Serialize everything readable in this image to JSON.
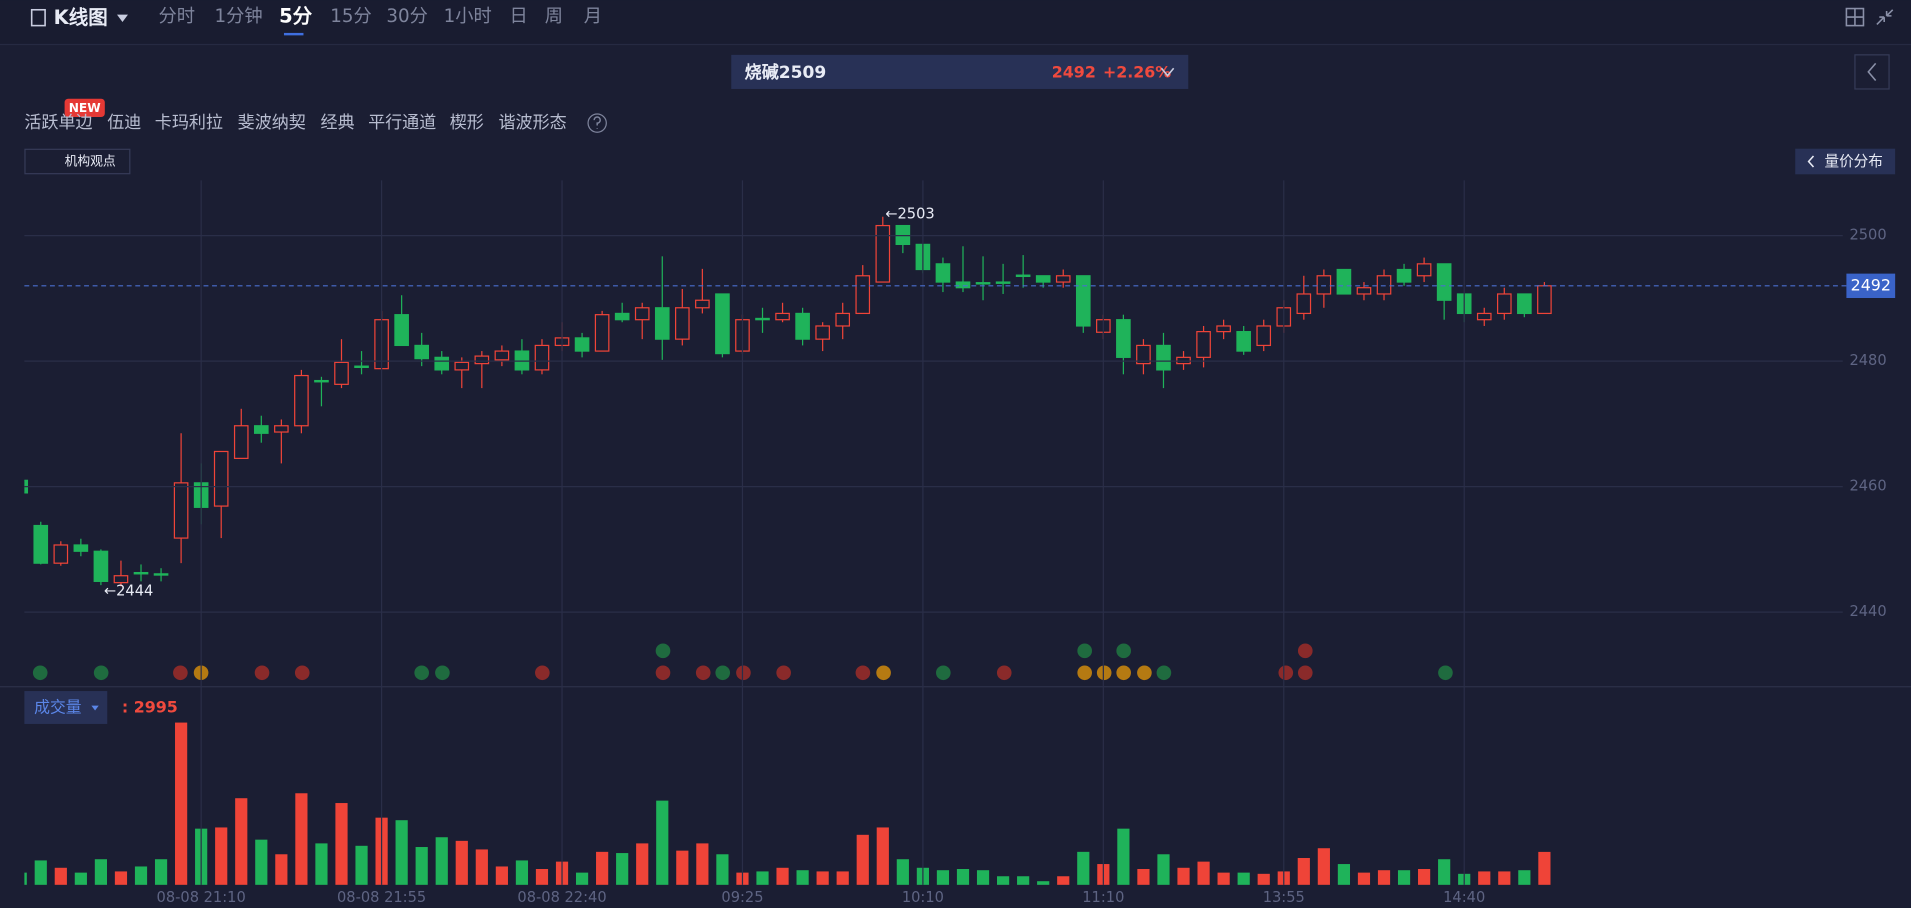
{
  "header": {
    "title": "K线图",
    "tabs": [
      "分时",
      "1分钟",
      "5分",
      "15分",
      "30分",
      "1小时",
      "日",
      "周",
      "月"
    ],
    "active_tab": "5分",
    "symbol": "烧碱2509",
    "price": "2492",
    "change": "+2.26%",
    "tools": [
      "活跃单边",
      "伍迪",
      "卡玛利拉",
      "斐波纳契",
      "经典",
      "平行通道",
      "楔形",
      "谐波形态"
    ],
    "badge": "NEW",
    "institution_view": "机构观点",
    "volume_profile": "量价分布"
  },
  "chart_data": [
    {
      "type": "candlestick",
      "up_color": "#ef4438",
      "down_color": "#1fb35a",
      "categories": [
        null,
        null,
        null,
        null,
        null,
        null,
        null,
        null,
        null,
        "08-08 21:10",
        null,
        null,
        null,
        null,
        null,
        null,
        null,
        null,
        "08-08 21:55",
        null,
        null,
        null,
        null,
        null,
        null,
        null,
        null,
        "08-08 22:40",
        null,
        null,
        null,
        null,
        null,
        null,
        null,
        null,
        "09:25",
        null,
        null,
        null,
        null,
        null,
        null,
        null,
        null,
        "10:10",
        null,
        null,
        null,
        null,
        null,
        null,
        null,
        null,
        "11:10",
        null,
        null,
        null,
        null,
        null,
        null,
        null,
        null,
        "13:55",
        null,
        null,
        null,
        null,
        null,
        null,
        null,
        null,
        "14:40",
        null,
        null,
        null,
        null
      ],
      "open": [
        2461,
        2453.8,
        2447.8,
        2450.7,
        2449.7,
        2444.7,
        2446.3,
        2446.1,
        2451.8,
        2460.6,
        2456.9,
        2464.5,
        2469.7,
        2468.7,
        2469.7,
        2476.9,
        2476.3,
        2479.2,
        2478.8,
        2487.4,
        2482.5,
        2480.6,
        2478.6,
        2479.6,
        2480.2,
        2481.6,
        2478.6,
        2482.5,
        2483.7,
        2481.6,
        2487.6,
        2486.6,
        2488.5,
        2483.5,
        2488.5,
        2490.7,
        2481.6,
        2486.8,
        2486.6,
        2487.6,
        2483.5,
        2485.6,
        2487.6,
        2492.6,
        2501.6,
        2498.6,
        2495.5,
        2492.6,
        2492.5,
        2492.6,
        2493.7,
        2493.6,
        2492.6,
        2493.6,
        2484.6,
        2486.6,
        2479.6,
        2482.5,
        2479.6,
        2480.6,
        2484.7,
        2484.7,
        2482.5,
        2485.6,
        2487.6,
        2490.7,
        2494.6,
        2490.7,
        2490.7,
        2494.6,
        2493.6,
        2495.5,
        2490.7,
        2486.6,
        2487.6,
        2490.7,
        2487.6
      ],
      "high": [
        2461,
        2454.4,
        2451.3,
        2451.7,
        2450,
        2448.2,
        2447.6,
        2447.0,
        2468.5,
        2463.7,
        2465.6,
        2472.4,
        2471.3,
        2470.7,
        2478.6,
        2477.5,
        2483.5,
        2481.6,
        2488,
        2490.5,
        2484.5,
        2481.6,
        2480.6,
        2481.6,
        2482.5,
        2483.5,
        2483.5,
        2486.2,
        2484.5,
        2488,
        2489.3,
        2489.3,
        2496.7,
        2491.5,
        2494.7,
        2490.7,
        2487.4,
        2488.5,
        2489.3,
        2488.5,
        2486.2,
        2489.3,
        2495.3,
        2503,
        2501.6,
        2498.6,
        2496.5,
        2498.3,
        2496.7,
        2495.5,
        2496.9,
        2493.6,
        2494.6,
        2493.6,
        2487.4,
        2487.4,
        2483.5,
        2484.5,
        2481.6,
        2485.6,
        2486.6,
        2485.6,
        2486.6,
        2489.7,
        2493.6,
        2494.6,
        2494.6,
        2492.6,
        2494.6,
        2495.5,
        2496.5,
        2495.5,
        2490.7,
        2488.5,
        2491.7,
        2490.7,
        2492.6
      ],
      "low": [
        2459,
        2447.6,
        2447.4,
        2448.9,
        2444.3,
        2444.1,
        2444.9,
        2444.9,
        2447.8,
        2454,
        2451.8,
        2464.5,
        2467,
        2463.7,
        2468.5,
        2472.8,
        2475.7,
        2477.9,
        2478.8,
        2482.5,
        2479.2,
        2477.9,
        2475.7,
        2475.7,
        2479.2,
        2477.9,
        2477.9,
        2481.6,
        2480.6,
        2481.6,
        2486.2,
        2483.5,
        2480.2,
        2482.5,
        2487.6,
        2480.6,
        2481.2,
        2484.5,
        2486.2,
        2482.5,
        2481.6,
        2483.5,
        2487.6,
        2492.6,
        2497.2,
        2494,
        2491,
        2491,
        2489.7,
        2490.7,
        2491.7,
        2491.7,
        2491.7,
        2484.5,
        2483.5,
        2477.9,
        2477.9,
        2475.7,
        2478.6,
        2479,
        2483.5,
        2481,
        2481.6,
        2484.5,
        2486.6,
        2488.5,
        2490.7,
        2489.7,
        2489.7,
        2492,
        2492.6,
        2486.6,
        2486.2,
        2485.6,
        2486.6,
        2487,
        2487.6
      ],
      "close": [
        2459,
        2447.8,
        2450.7,
        2449.7,
        2444.9,
        2445.8,
        2446.1,
        2446.0,
        2460.6,
        2456.7,
        2465.6,
        2469.7,
        2468.5,
        2469.7,
        2477.7,
        2476.7,
        2479.8,
        2479.0,
        2486.6,
        2482.5,
        2480.4,
        2478.6,
        2479.8,
        2480.8,
        2481.6,
        2478.6,
        2482.5,
        2483.7,
        2481.6,
        2487.4,
        2486.6,
        2488.5,
        2483.5,
        2488.5,
        2489.7,
        2481.2,
        2486.6,
        2486.6,
        2487.6,
        2483.5,
        2485.6,
        2487.6,
        2493.6,
        2501.6,
        2498.6,
        2494.6,
        2492.6,
        2491.7,
        2492.3,
        2492.4,
        2493.5,
        2492.6,
        2493.6,
        2485.6,
        2486.6,
        2480.6,
        2482.5,
        2478.6,
        2480.6,
        2484.7,
        2485.6,
        2481.6,
        2485.6,
        2488.5,
        2490.7,
        2493.6,
        2490.7,
        2491.7,
        2493.6,
        2492.6,
        2495.5,
        2489.7,
        2487.6,
        2487.6,
        2490.7,
        2487.6,
        2492
      ],
      "ylim": [
        2428.2,
        2508.8
      ],
      "yticks": [
        2440,
        2460,
        2480,
        2500
      ],
      "grid": true,
      "last_price": 2492,
      "high_annotation": "←2503",
      "low_annotation": "←2444"
    },
    {
      "type": "bar",
      "title": "成交量",
      "readout": ": 2995",
      "values": [
        1110,
        2220,
        1550,
        1110,
        2330,
        1220,
        1670,
        2330,
        14760,
        5110,
        5220,
        7880,
        4110,
        2780,
        8330,
        3770,
        7440,
        3550,
        6110,
        5880,
        3440,
        4330,
        4000,
        3220,
        1670,
        2220,
        1440,
        2110,
        1110,
        3000,
        2890,
        3770,
        7660,
        3110,
        3770,
        2780,
        1110,
        1220,
        1550,
        1330,
        1220,
        1220,
        4550,
        5220,
        2330,
        1550,
        1330,
        1440,
        1330,
        780,
        780,
        330,
        780,
        3000,
        1890,
        5110,
        1440,
        2780,
        1550,
        2110,
        1110,
        1110,
        1000,
        1220,
        2440,
        3330,
        1890,
        1110,
        1330,
        1330,
        1440,
        2330,
        1000,
        1220,
        1220,
        1330,
        2995
      ],
      "ylim": [
        0,
        15300
      ]
    }
  ]
}
